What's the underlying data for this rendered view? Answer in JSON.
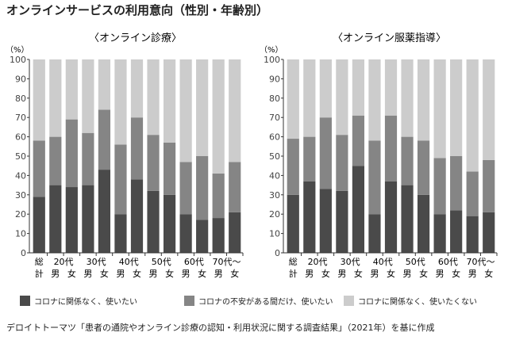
{
  "title": "オンラインサービスの利用意向（性別・年齢別）",
  "footer": "デロイトトーマツ「患者の通院やオンライン診療の認知・利用状況に関する調査結果」（2021年）を基に作成",
  "colors": [
    "#4a4a4a",
    "#858585",
    "#cccccc"
  ],
  "legend": [
    "コロナに関係なく、使いたい",
    "コロナの不安がある間だけ、使いたい",
    "コロナに関係なく、使いたくない"
  ],
  "chart_data": [
    {
      "type": "bar",
      "stacked": true,
      "title": "〈オンライン診療〉",
      "ylabel": "（%）",
      "ylim": [
        0,
        100
      ],
      "yticks": [
        "0",
        "10",
        "20",
        "30",
        "40",
        "50",
        "60",
        "70",
        "80",
        "90",
        "100"
      ],
      "categories": [
        "総計",
        "20代 男",
        "20代 女",
        "30代 男",
        "30代 女",
        "40代 男",
        "40代 女",
        "50代 男",
        "50代 女",
        "60代 男",
        "60代 女",
        "70代～ 男",
        "70代～ 女"
      ],
      "series": [
        {
          "name": "コロナに関係なく、使いたい",
          "values": [
            29,
            35,
            34,
            35,
            43,
            20,
            38,
            32,
            30,
            20,
            17,
            18,
            21
          ]
        },
        {
          "name": "コロナの不安がある間だけ、使いたい",
          "values": [
            29,
            25,
            35,
            27,
            31,
            36,
            32,
            29,
            27,
            27,
            33,
            23,
            26
          ]
        },
        {
          "name": "コロナに関係なく、使いたくない",
          "values": [
            42,
            40,
            31,
            38,
            26,
            44,
            30,
            39,
            43,
            53,
            50,
            59,
            53
          ]
        }
      ]
    },
    {
      "type": "bar",
      "stacked": true,
      "title": "〈オンライン服薬指導〉",
      "ylabel": "（%）",
      "ylim": [
        0,
        100
      ],
      "yticks": [
        "0",
        "10",
        "20",
        "30",
        "40",
        "50",
        "60",
        "70",
        "80",
        "90",
        "100"
      ],
      "categories": [
        "総計",
        "20代 男",
        "20代 女",
        "30代 男",
        "30代 女",
        "40代 男",
        "40代 女",
        "50代 男",
        "50代 女",
        "60代 男",
        "60代 女",
        "70代～ 男",
        "70代～ 女"
      ],
      "series": [
        {
          "name": "コロナに関係なく、使いたい",
          "values": [
            30,
            37,
            33,
            32,
            45,
            20,
            37,
            35,
            30,
            20,
            22,
            19,
            21
          ]
        },
        {
          "name": "コロナの不安がある間だけ、使いたい",
          "values": [
            29,
            23,
            37,
            29,
            26,
            38,
            34,
            25,
            28,
            29,
            28,
            23,
            27
          ]
        },
        {
          "name": "コロナに関係なく、使いたくない",
          "values": [
            41,
            40,
            30,
            39,
            29,
            42,
            29,
            40,
            42,
            51,
            50,
            58,
            52
          ]
        }
      ]
    }
  ],
  "xlabels": {
    "total": [
      "総",
      "計"
    ],
    "groups": [
      "20代",
      "30代",
      "40代",
      "50代",
      "60代",
      "70代～"
    ],
    "sexes": [
      "男",
      "女"
    ]
  }
}
